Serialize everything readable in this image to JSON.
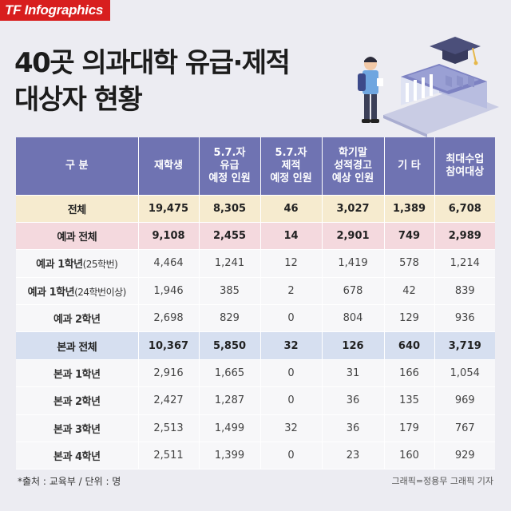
{
  "brand": "TF Infographics",
  "title": {
    "line1": "40곳 의과대학 유급·제적",
    "line2": "대상자 현황"
  },
  "colors": {
    "brand": "#d81e1e",
    "header": "#6f73b2",
    "total_row": "#f6ebcf",
    "yegwa_row": "#f4d9de",
    "bongwa_row": "#d6dff0"
  },
  "illustration": {
    "icons": [
      "student-icon",
      "mortarboard-icon",
      "university-building-icon"
    ]
  },
  "table": {
    "headers": [
      [
        "구 분"
      ],
      [
        "재학생"
      ],
      [
        "5.7.자",
        "유급",
        "예정 인원"
      ],
      [
        "5.7.자",
        "제적",
        "예정 인원"
      ],
      [
        "학기말",
        "성적경고",
        "예상 인원"
      ],
      [
        "기 타"
      ],
      [
        "최대수업",
        "참여대상"
      ]
    ],
    "rows": [
      {
        "label": "전체",
        "sub": "",
        "type": "total",
        "cells": [
          "19,475",
          "8,305",
          "46",
          "3,027",
          "1,389",
          "6,708"
        ]
      },
      {
        "label": "예과 전체",
        "sub": "",
        "type": "yegwa",
        "cells": [
          "9,108",
          "2,455",
          "14",
          "2,901",
          "749",
          "2,989"
        ]
      },
      {
        "label": "예과 1학년",
        "sub": "(25학번)",
        "type": "plain",
        "cells": [
          "4,464",
          "1,241",
          "12",
          "1,419",
          "578",
          "1,214"
        ]
      },
      {
        "label": "예과 1학년",
        "sub": "(24학번이상)",
        "type": "plain",
        "cells": [
          "1,946",
          "385",
          "2",
          "678",
          "42",
          "839"
        ]
      },
      {
        "label": "예과 2학년",
        "sub": "",
        "type": "plain",
        "cells": [
          "2,698",
          "829",
          "0",
          "804",
          "129",
          "936"
        ]
      },
      {
        "label": "본과 전체",
        "sub": "",
        "type": "bongwa",
        "cells": [
          "10,367",
          "5,850",
          "32",
          "126",
          "640",
          "3,719"
        ]
      },
      {
        "label": "본과 1학년",
        "sub": "",
        "type": "plain",
        "cells": [
          "2,916",
          "1,665",
          "0",
          "31",
          "166",
          "1,054"
        ]
      },
      {
        "label": "본과 2학년",
        "sub": "",
        "type": "plain",
        "cells": [
          "2,427",
          "1,287",
          "0",
          "36",
          "135",
          "969"
        ]
      },
      {
        "label": "본과 3학년",
        "sub": "",
        "type": "plain",
        "cells": [
          "2,513",
          "1,499",
          "32",
          "36",
          "179",
          "767"
        ]
      },
      {
        "label": "본과 4학년",
        "sub": "",
        "type": "plain",
        "cells": [
          "2,511",
          "1,399",
          "0",
          "23",
          "160",
          "929"
        ]
      }
    ]
  },
  "footer": {
    "source": "*출처 : 교육부 / 단위 : 명",
    "credit": "그래픽=정용무 그래픽 기자"
  }
}
